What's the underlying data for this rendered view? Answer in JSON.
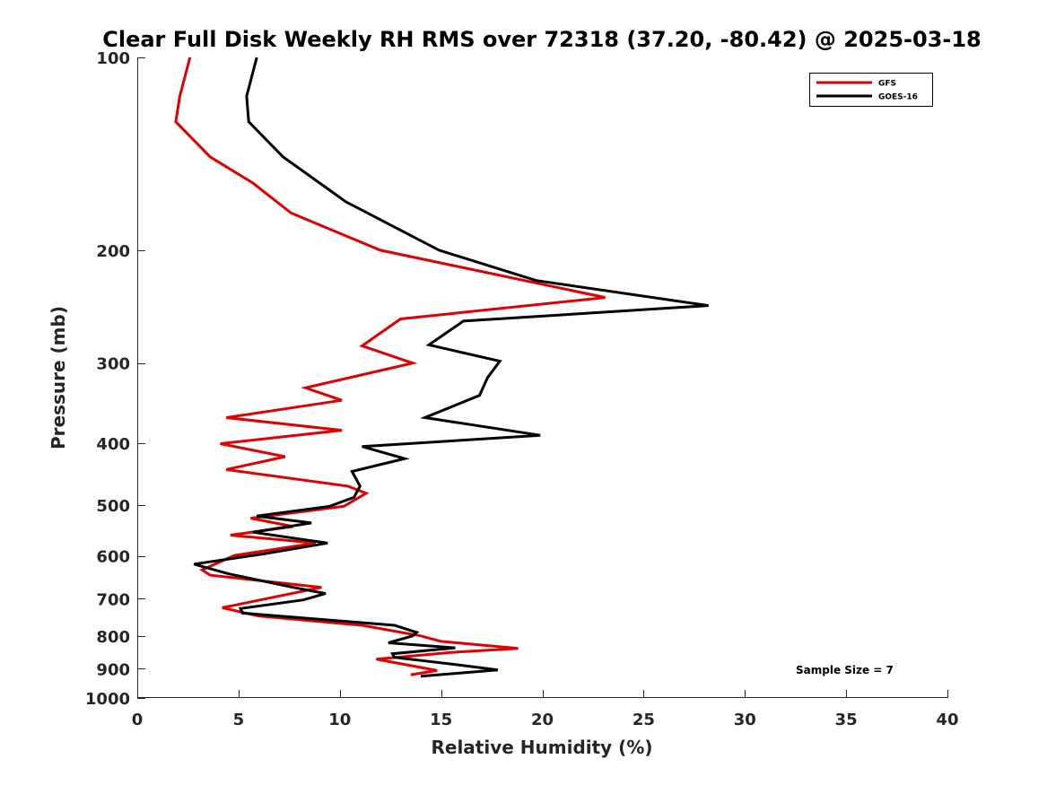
{
  "chart_data": {
    "type": "line",
    "title": "Clear Full Disk Weekly RH RMS over 72318 (37.20, -80.42) @ 2025-03-18",
    "xlabel": "Relative Humidity (%)",
    "ylabel": "Pressure (mb)",
    "xlim": [
      0,
      40
    ],
    "ylim": [
      100,
      1000
    ],
    "y_scale": "log",
    "y_reversed": true,
    "xticks": [
      "0",
      "5",
      "10",
      "15",
      "20",
      "25",
      "30",
      "35",
      "40"
    ],
    "yticks": [
      "100",
      "200",
      "300",
      "400",
      "500",
      "600",
      "700",
      "800",
      "900",
      "1000"
    ],
    "grid": false,
    "legend_position": "top-right",
    "annotation": "Sample Size = 7",
    "series": [
      {
        "name": "GFS",
        "color": "#e00000",
        "points": [
          [
            2.6,
            100
          ],
          [
            2.1,
            115
          ],
          [
            1.9,
            126
          ],
          [
            3.6,
            143
          ],
          [
            5.7,
            157
          ],
          [
            7.6,
            175
          ],
          [
            12.0,
            200
          ],
          [
            23.1,
            237
          ],
          [
            13.0,
            256
          ],
          [
            11.1,
            282
          ],
          [
            13.6,
            300
          ],
          [
            8.3,
            328
          ],
          [
            10.1,
            343
          ],
          [
            4.4,
            365
          ],
          [
            10.1,
            382
          ],
          [
            4.1,
            401
          ],
          [
            7.3,
            420
          ],
          [
            4.4,
            440
          ],
          [
            10.4,
            467
          ],
          [
            11.3,
            479
          ],
          [
            10.2,
            502
          ],
          [
            5.6,
            524
          ],
          [
            7.7,
            540
          ],
          [
            4.6,
            557
          ],
          [
            8.8,
            573
          ],
          [
            4.8,
            599
          ],
          [
            3.2,
            631
          ],
          [
            3.6,
            643
          ],
          [
            9.1,
            672
          ],
          [
            4.2,
            723
          ],
          [
            6.0,
            745
          ],
          [
            11.1,
            770
          ],
          [
            14.0,
            800
          ],
          [
            15.0,
            816
          ],
          [
            18.8,
            837
          ],
          [
            15.5,
            849
          ],
          [
            11.8,
            870
          ],
          [
            13.5,
            890
          ],
          [
            14.8,
            906
          ],
          [
            13.5,
            920
          ]
        ]
      },
      {
        "name": "GOES-16",
        "color": "#000000",
        "points": [
          [
            5.9,
            100
          ],
          [
            5.4,
            115
          ],
          [
            5.5,
            126
          ],
          [
            7.2,
            143
          ],
          [
            10.3,
            168
          ],
          [
            14.9,
            200
          ],
          [
            19.7,
            223
          ],
          [
            28.2,
            244
          ],
          [
            16.1,
            258
          ],
          [
            14.4,
            281
          ],
          [
            17.9,
            298
          ],
          [
            17.3,
            316
          ],
          [
            16.9,
            337
          ],
          [
            14.2,
            365
          ],
          [
            19.9,
            389
          ],
          [
            11.1,
            405
          ],
          [
            13.2,
            423
          ],
          [
            10.6,
            443
          ],
          [
            11.0,
            467
          ],
          [
            10.7,
            486
          ],
          [
            9.5,
            502
          ],
          [
            5.9,
            520
          ],
          [
            8.6,
            533
          ],
          [
            5.7,
            551
          ],
          [
            9.4,
            573
          ],
          [
            6.2,
            596
          ],
          [
            2.8,
            618
          ],
          [
            4.5,
            640
          ],
          [
            7.5,
            670
          ],
          [
            9.3,
            687
          ],
          [
            8.2,
            703
          ],
          [
            5.1,
            725
          ],
          [
            5.2,
            737
          ],
          [
            12.7,
            770
          ],
          [
            13.8,
            790
          ],
          [
            13.6,
            800
          ],
          [
            12.4,
            820
          ],
          [
            15.7,
            835
          ],
          [
            12.6,
            853
          ],
          [
            12.7,
            864
          ],
          [
            15.9,
            888
          ],
          [
            17.8,
            904
          ],
          [
            14.0,
            925
          ]
        ]
      }
    ]
  }
}
